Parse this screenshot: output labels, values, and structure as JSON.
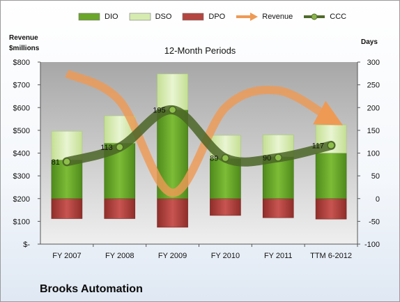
{
  "legend": [
    {
      "name": "DIO",
      "color": "#6aa629",
      "kind": "box"
    },
    {
      "name": "DSO",
      "color": "#d6ebb0",
      "kind": "box"
    },
    {
      "name": "DPO",
      "color": "#b44540",
      "kind": "box"
    },
    {
      "name": "Revenue",
      "color": "#ee9a55",
      "kind": "arrow"
    },
    {
      "name": "CCC",
      "color": "#4f6a2a",
      "kind": "line"
    }
  ],
  "left_axis_title": [
    "Revenue",
    "$millions"
  ],
  "right_axis_title": "Days",
  "chart_title": "12-Month Periods",
  "company": "Brooks Automation",
  "chart_data": {
    "type": "bar",
    "categories": [
      "FY 2007",
      "FY 2008",
      "FY 2009",
      "FY 2010",
      "FY 2011",
      "TTM 6-2012"
    ],
    "left_axis": {
      "ticks": [
        "$-",
        "$100",
        "$200",
        "$300",
        "$400",
        "$500",
        "$600",
        "$700",
        "$800"
      ],
      "ylim": [
        0,
        800
      ]
    },
    "right_axis": {
      "ticks": [
        "-100",
        "-50",
        "0",
        "50",
        "100",
        "150",
        "200",
        "250",
        "300"
      ],
      "ylim": [
        -100,
        300
      ]
    },
    "series": [
      {
        "name": "DIO",
        "axis": "right",
        "color": "#6aa629",
        "values": [
          85,
          122,
          195,
          88,
          92,
          100
        ]
      },
      {
        "name": "DSO",
        "axis": "right",
        "color": "#d6ebb0",
        "values": [
          63,
          60,
          79,
          51,
          48,
          62
        ]
      },
      {
        "name": "DPO",
        "axis": "right",
        "color": "#b44540",
        "values": [
          -44,
          -44,
          -63,
          -37,
          -42,
          -45
        ]
      },
      {
        "name": "Revenue",
        "axis": "left",
        "color": "#ee9a55",
        "values": [
          750,
          630,
          225,
          600,
          675,
          550
        ]
      },
      {
        "name": "CCC",
        "axis": "right",
        "color": "#4f6a2a",
        "values": [
          81,
          113,
          195,
          89,
          90,
          117
        ]
      }
    ],
    "ccc_labels": [
      "81",
      "113",
      "195",
      "89",
      "90",
      "117"
    ],
    "grid": false
  }
}
